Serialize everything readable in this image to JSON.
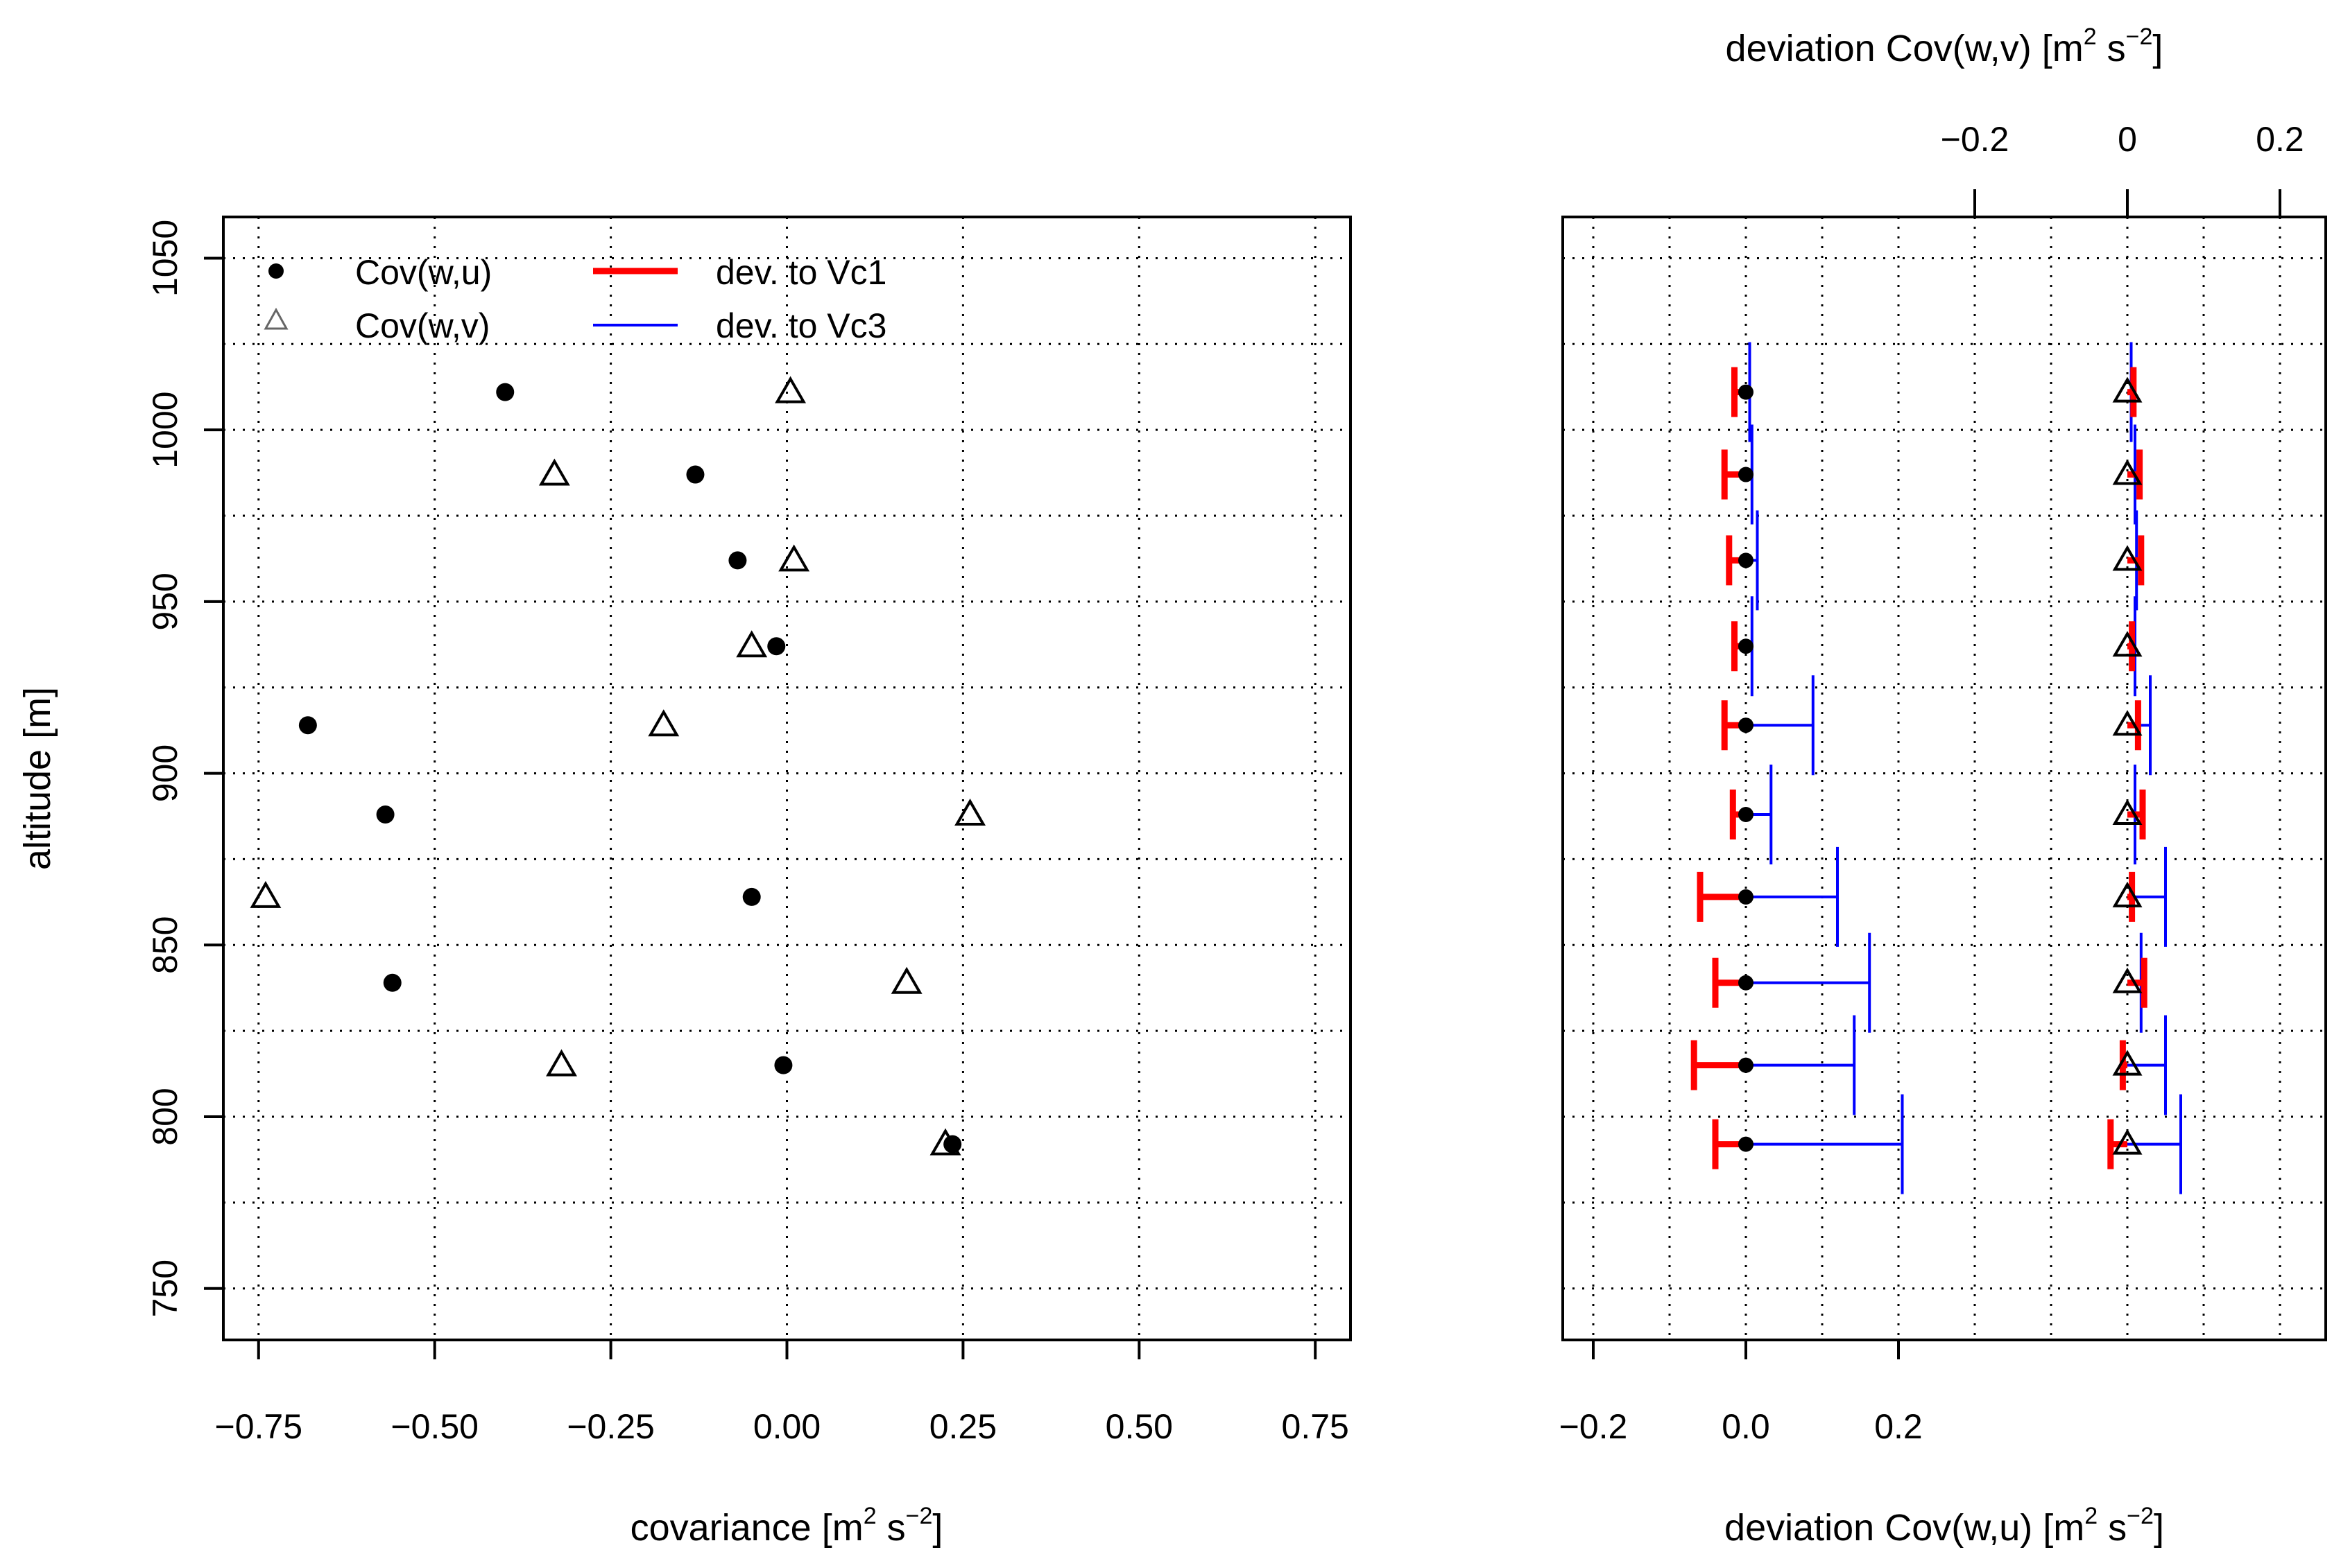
{
  "chart_data": [
    {
      "type": "scatter",
      "xlabel_text": "covariance [m",
      "xlabel_sup1": "2",
      "xlabel_mid": " s",
      "xlabel_sup2": "−2",
      "xlabel_end": "]",
      "ylabel": "altitude [m]",
      "xlim": [
        -0.8,
        0.8
      ],
      "ylim": [
        735,
        1062
      ],
      "x_ticks": [
        "−0.75",
        "−0.50",
        "−0.25",
        "0.00",
        "0.25",
        "0.50",
        "0.75"
      ],
      "x_tick_values": [
        -0.75,
        -0.5,
        -0.25,
        0,
        0.25,
        0.5,
        0.75
      ],
      "y_ticks": [
        "750",
        "800",
        "850",
        "900",
        "950",
        "1000",
        "1050"
      ],
      "y_tick_values": [
        750,
        800,
        850,
        900,
        950,
        1000,
        1050
      ],
      "grid_x": [
        -0.75,
        -0.5,
        -0.25,
        0,
        0.25,
        0.5,
        0.75
      ],
      "grid_y": [
        750,
        775,
        800,
        825,
        850,
        875,
        900,
        925,
        950,
        975,
        1000,
        1025,
        1050
      ],
      "series": [
        {
          "name": "Cov(w,u)",
          "marker": "circle",
          "points": [
            {
              "x": -0.4,
              "y": 1011
            },
            {
              "x": -0.13,
              "y": 987
            },
            {
              "x": -0.07,
              "y": 962
            },
            {
              "x": -0.015,
              "y": 937
            },
            {
              "x": -0.68,
              "y": 914
            },
            {
              "x": -0.57,
              "y": 888
            },
            {
              "x": -0.05,
              "y": 864
            },
            {
              "x": -0.56,
              "y": 839
            },
            {
              "x": -0.005,
              "y": 815
            },
            {
              "x": 0.235,
              "y": 792
            }
          ]
        },
        {
          "name": "Cov(w,v)",
          "marker": "triangle",
          "points": [
            {
              "x": 0.005,
              "y": 1011
            },
            {
              "x": -0.33,
              "y": 987
            },
            {
              "x": 0.01,
              "y": 962
            },
            {
              "x": -0.05,
              "y": 937
            },
            {
              "x": -0.175,
              "y": 914
            },
            {
              "x": 0.26,
              "y": 888
            },
            {
              "x": -0.74,
              "y": 864
            },
            {
              "x": 0.17,
              "y": 839
            },
            {
              "x": -0.32,
              "y": 815
            },
            {
              "x": 0.225,
              "y": 792
            }
          ]
        }
      ],
      "legend": {
        "position": "top-left",
        "items": [
          {
            "label": "Cov(w,u)",
            "symbol": "circle"
          },
          {
            "label": "Cov(w,v)",
            "symbol": "triangle"
          },
          {
            "label": "dev. to Vc1",
            "symbol": "line",
            "color": "#ff0000"
          },
          {
            "label": "dev. to Vc3",
            "symbol": "line",
            "color": "#0000ff"
          }
        ]
      }
    },
    {
      "type": "errorbar",
      "xlabel_text": "deviation Cov(w,u) [m",
      "xlabel_sup1": "2",
      "xlabel_mid": " s",
      "xlabel_sup2": "−2",
      "xlabel_end": "]",
      "toplabel_text": "deviation Cov(w,v) [m",
      "toplabel_sup1": "2",
      "toplabel_mid": " s",
      "toplabel_sup2": "−2",
      "toplabel_end": "]",
      "xlim": [
        -0.24,
        0.76
      ],
      "ylim": [
        735,
        1062
      ],
      "bottom_ticks": [
        "−0.2",
        "0.0",
        "0.2"
      ],
      "bottom_tick_values": [
        -0.2,
        0,
        0.2
      ],
      "top_ticks": [
        "−0.2",
        "0",
        "0.2"
      ],
      "top_tick_values": [
        0.3,
        0.5,
        0.7
      ],
      "top_axis_offset": 0.5,
      "grid_x": [
        -0.2,
        -0.1,
        0,
        0.1,
        0.2,
        0.3,
        0.4,
        0.5,
        0.6,
        0.7
      ],
      "grid_y": [
        750,
        775,
        800,
        825,
        850,
        875,
        900,
        925,
        950,
        975,
        1000,
        1025,
        1050
      ],
      "colors": {
        "vc1": "#ff0000",
        "vc3": "#0000ff"
      },
      "levels": [
        {
          "y": 1011,
          "u_vc1": -0.015,
          "u_vc3": 0.005,
          "v_vc1": 0.008,
          "v_vc3": 0.005
        },
        {
          "y": 987,
          "u_vc1": -0.028,
          "u_vc3": 0.008,
          "v_vc1": 0.016,
          "v_vc3": 0.01
        },
        {
          "y": 962,
          "u_vc1": -0.022,
          "u_vc3": 0.015,
          "v_vc1": 0.018,
          "v_vc3": 0.012
        },
        {
          "y": 937,
          "u_vc1": -0.015,
          "u_vc3": 0.008,
          "v_vc1": 0.006,
          "v_vc3": 0.01
        },
        {
          "y": 914,
          "u_vc1": -0.028,
          "u_vc3": 0.088,
          "v_vc1": 0.014,
          "v_vc3": 0.03
        },
        {
          "y": 888,
          "u_vc1": -0.017,
          "u_vc3": 0.033,
          "v_vc1": 0.02,
          "v_vc3": 0.01
        },
        {
          "y": 864,
          "u_vc1": -0.06,
          "u_vc3": 0.12,
          "v_vc1": 0.006,
          "v_vc3": 0.05
        },
        {
          "y": 839,
          "u_vc1": -0.04,
          "u_vc3": 0.162,
          "v_vc1": 0.022,
          "v_vc3": 0.018
        },
        {
          "y": 815,
          "u_vc1": -0.068,
          "u_vc3": 0.142,
          "v_vc1": -0.006,
          "v_vc3": 0.05
        },
        {
          "y": 792,
          "u_vc1": -0.04,
          "u_vc3": 0.205,
          "v_vc1": -0.022,
          "v_vc3": 0.07
        }
      ]
    }
  ]
}
